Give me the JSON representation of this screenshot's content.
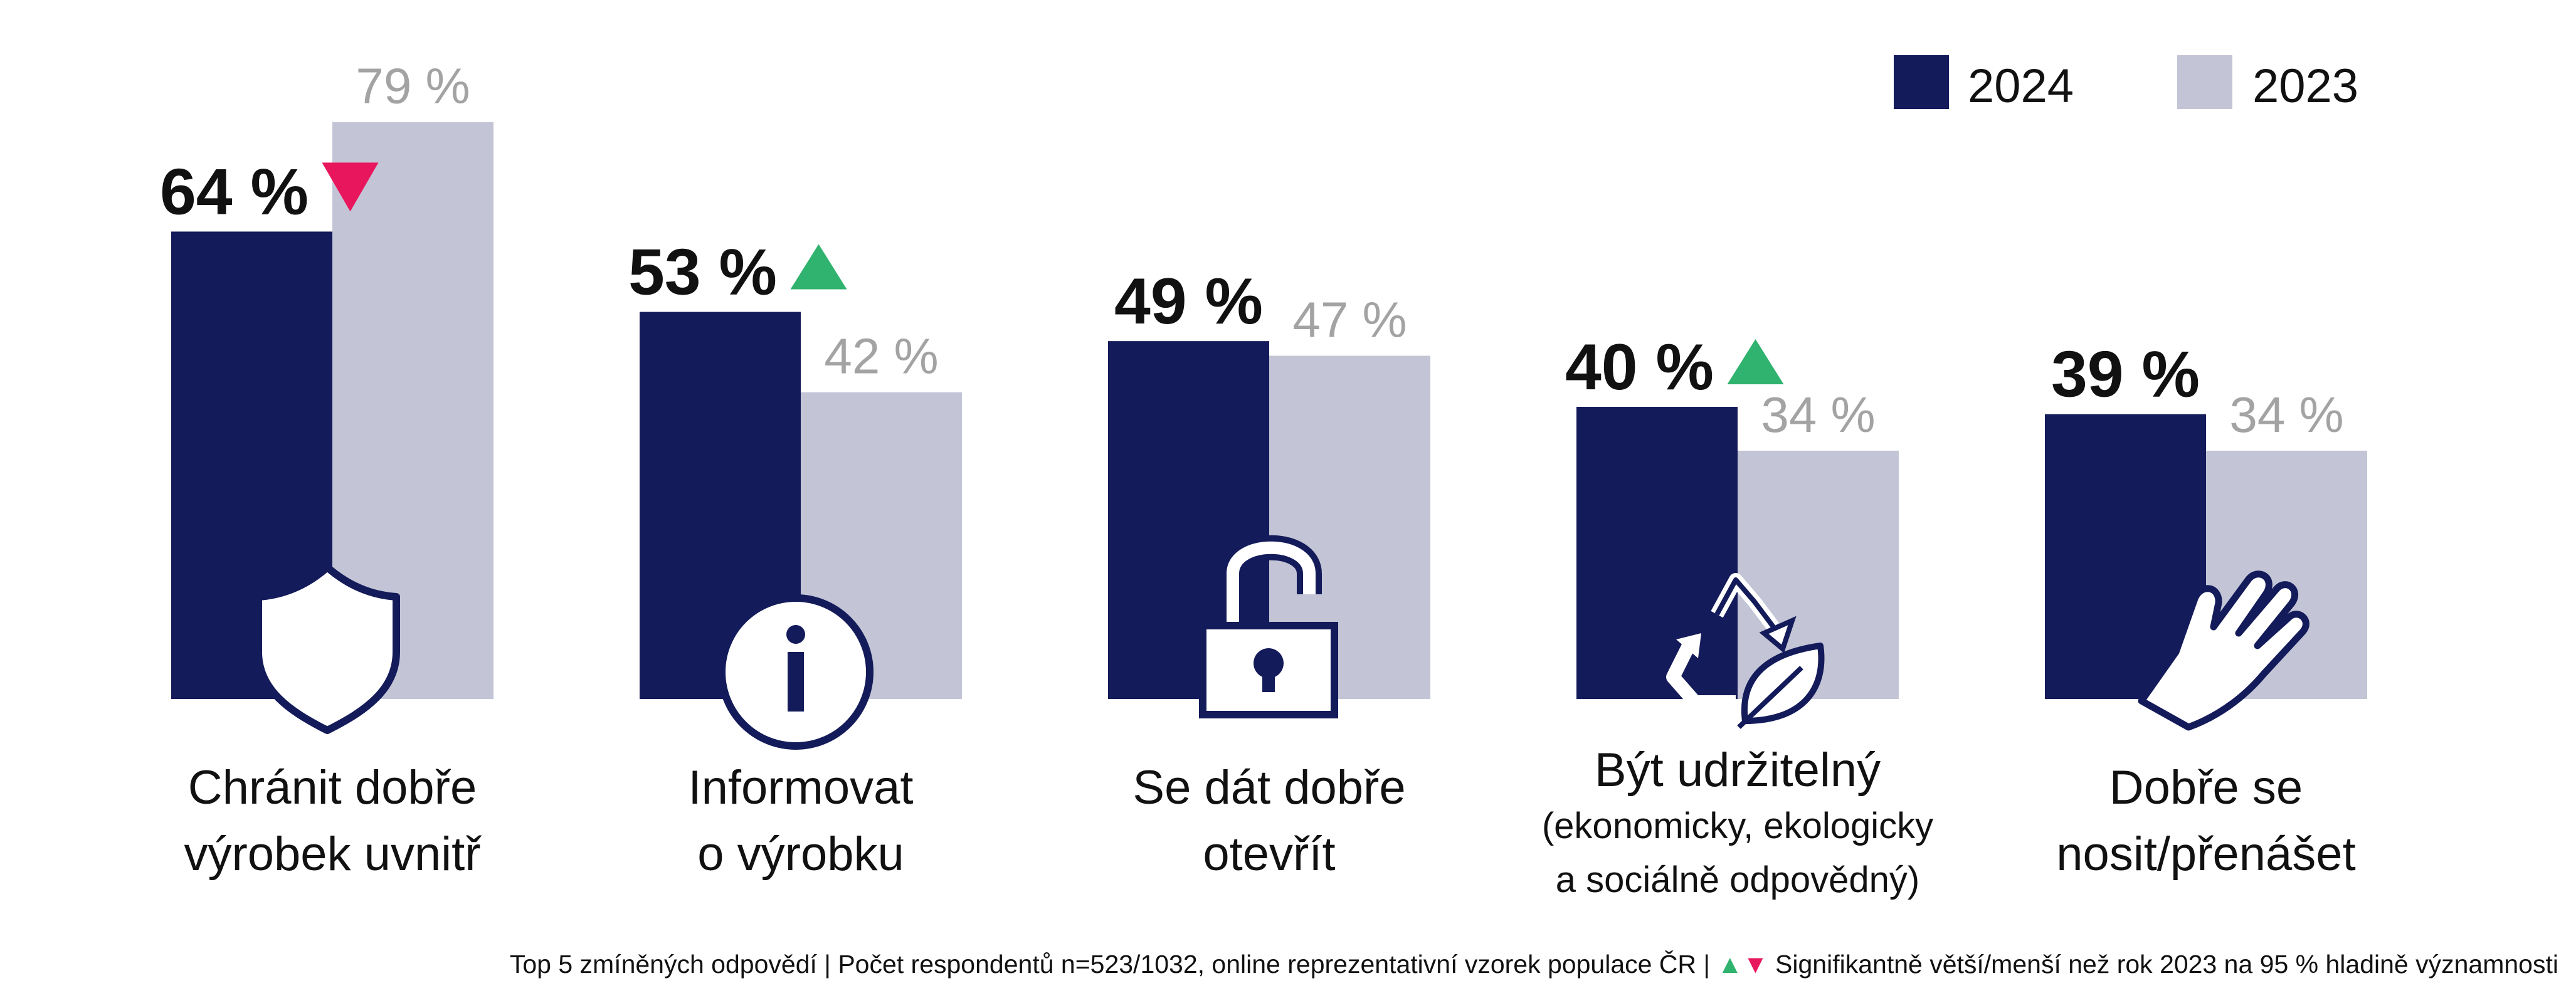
{
  "chart_data": {
    "type": "bar",
    "categories": [
      [
        "Chránit dobře",
        "výrobek uvnitř"
      ],
      [
        "Informovat",
        "o výrobku"
      ],
      [
        "Se dát dobře",
        "otevřít"
      ],
      [
        "Být udržitelný",
        "(ekonomicky, ekologicky",
        "a sociálně odpovědný)"
      ],
      [
        "Dobře se",
        "nosit/přenášet"
      ]
    ],
    "series": [
      {
        "name": "2024",
        "values": [
          64,
          53,
          49,
          40,
          39
        ],
        "labels": [
          "64 %",
          "53 %",
          "49 %",
          "40 %",
          "39 %"
        ]
      },
      {
        "name": "2023",
        "values": [
          79,
          42,
          47,
          34,
          34
        ],
        "labels": [
          "79 %",
          "42 %",
          "47 %",
          "34 %",
          "34 %"
        ]
      }
    ],
    "significance": [
      "down",
      "up",
      "none",
      "up",
      "none"
    ],
    "icons": [
      "shield-icon",
      "info-icon",
      "open-padlock-icon",
      "recycle-leaf-icon",
      "hand-icon"
    ],
    "ylim": [
      0,
      100
    ],
    "legend_position": "top-right",
    "grid": false
  },
  "footnote": {
    "before": "Top 5 zmíněných odpovědí | Počet respondentů n=523/1032, online reprezentativní vzorek populace ČR | ",
    "after": " Signifikantně větší/menší než rok 2023 na 95 % hladině významnosti"
  },
  "colors": {
    "primary": "#141b5a",
    "secondary": "#c3c5d6",
    "up": "#2fb36e",
    "down": "#e8175d",
    "secondary_text": "#a3a3a3"
  }
}
